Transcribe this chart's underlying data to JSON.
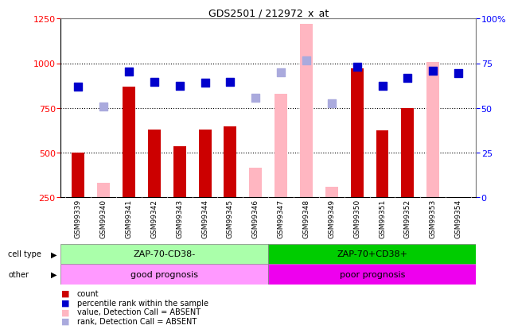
{
  "title": "GDS2501 / 212972_x_at",
  "samples": [
    "GSM99339",
    "GSM99340",
    "GSM99341",
    "GSM99342",
    "GSM99343",
    "GSM99344",
    "GSM99345",
    "GSM99346",
    "GSM99347",
    "GSM99348",
    "GSM99349",
    "GSM99350",
    "GSM99351",
    "GSM99352",
    "GSM99353",
    "GSM99354"
  ],
  "n_samples": 16,
  "split_idx": 8,
  "count_present": [
    500,
    null,
    870,
    630,
    535,
    630,
    645,
    null,
    null,
    null,
    null,
    970,
    625,
    750,
    null,
    null
  ],
  "count_absent": [
    null,
    330,
    null,
    null,
    null,
    null,
    null,
    415,
    830,
    1220,
    310,
    null,
    null,
    null,
    1005,
    null
  ],
  "rank_present": [
    870,
    null,
    955,
    895,
    875,
    890,
    895,
    null,
    null,
    null,
    null,
    980,
    875,
    920,
    960,
    945
  ],
  "rank_absent": [
    null,
    760,
    null,
    null,
    null,
    null,
    null,
    805,
    950,
    1015,
    775,
    null,
    null,
    null,
    null,
    null
  ],
  "ylim_left": [
    250,
    1250
  ],
  "ylim_right": [
    0,
    100
  ],
  "yticks_left": [
    250,
    500,
    750,
    1000,
    1250
  ],
  "yticks_right": [
    0,
    25,
    50,
    75,
    100
  ],
  "ytick_right_labels": [
    "0",
    "25",
    "50",
    "75",
    "100%"
  ],
  "hlines": [
    500,
    750,
    1000
  ],
  "bar_color_present": "#CC0000",
  "bar_color_absent": "#FFB6C1",
  "dot_color_present": "#0000CC",
  "dot_color_absent": "#AAAADD",
  "bar_width": 0.5,
  "dot_size": 50,
  "xtick_bg": "#C8C8C8",
  "cell_type_left_color": "#AAFFAA",
  "cell_type_right_color": "#00CC00",
  "other_left_color": "#FF99FF",
  "other_right_color": "#EE00EE",
  "cell_type_left_label": "ZAP-70-CD38-",
  "cell_type_right_label": "ZAP-70+CD38+",
  "other_left_label": "good prognosis",
  "other_right_label": "poor prognosis",
  "legend": [
    {
      "label": "count",
      "color": "#CC0000"
    },
    {
      "label": "percentile rank within the sample",
      "color": "#0000CC"
    },
    {
      "label": "value, Detection Call = ABSENT",
      "color": "#FFB6C1"
    },
    {
      "label": "rank, Detection Call = ABSENT",
      "color": "#AAAADD"
    }
  ]
}
